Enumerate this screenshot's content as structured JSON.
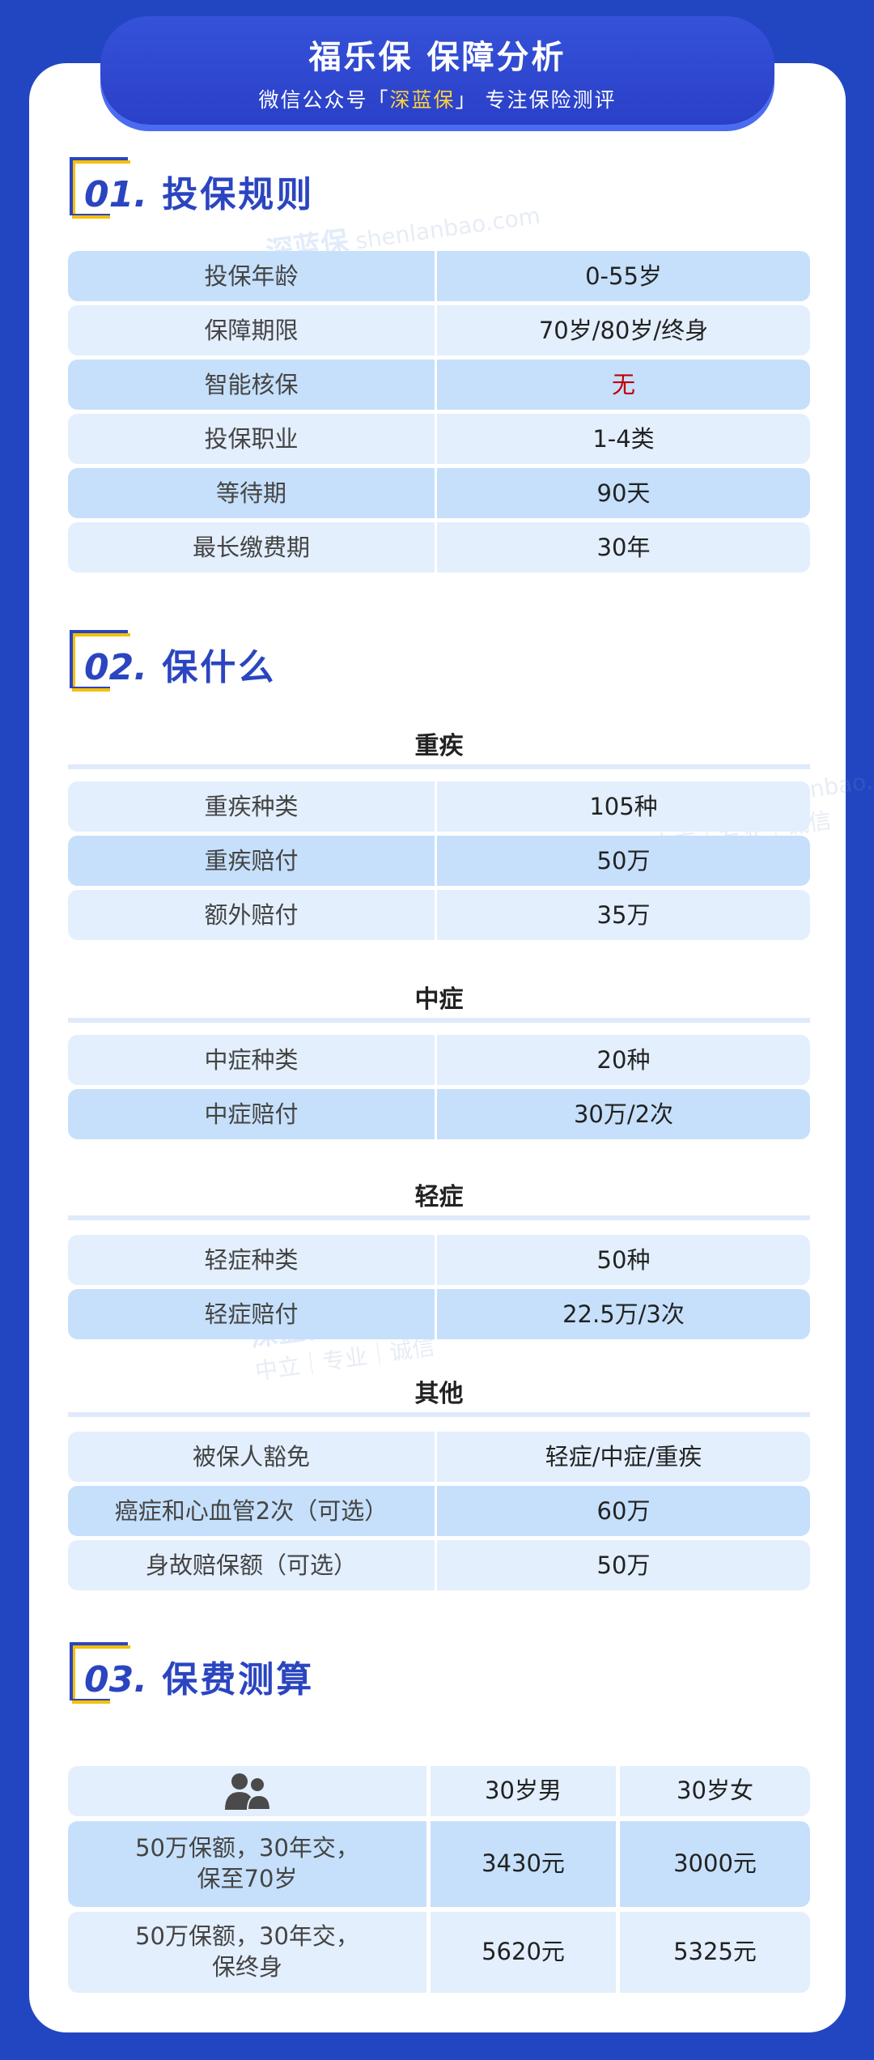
{
  "header": {
    "title": "福乐保 保障分析",
    "subtitle_prefix": "微信公众号「",
    "subtitle_brand": "深蓝保",
    "subtitle_suffix": "」 专注保险测评"
  },
  "watermark": {
    "domain": "shenlanbao.com",
    "slogan": "中立｜专业｜诚信",
    "logo": "深蓝保"
  },
  "colors": {
    "background": "#2246c2",
    "accent": "#2b45c0",
    "marker": "#f5c000",
    "row_dark": "#c6e0fb",
    "row_light": "#e3effd",
    "highlight": "#c00000"
  },
  "sections": [
    {
      "num": "01.",
      "title": "投保规则"
    },
    {
      "num": "02.",
      "title": "保什么"
    },
    {
      "num": "03.",
      "title": "保费测算"
    }
  ],
  "rules": [
    {
      "label": "投保年龄",
      "value": "0-55岁"
    },
    {
      "label": "保障期限",
      "value": "70岁/80岁/终身"
    },
    {
      "label": "智能核保",
      "value": "无",
      "highlight": true
    },
    {
      "label": "投保职业",
      "value": "1-4类"
    },
    {
      "label": "等待期",
      "value": "90天"
    },
    {
      "label": "最长缴费期",
      "value": "30年"
    }
  ],
  "coverage": [
    {
      "group": "重疾",
      "rows": [
        {
          "label": "重疾种类",
          "value": "105种"
        },
        {
          "label": "重疾赔付",
          "value": "50万"
        },
        {
          "label": "额外赔付",
          "value": "35万"
        }
      ]
    },
    {
      "group": "中症",
      "rows": [
        {
          "label": "中症种类",
          "value": "20种"
        },
        {
          "label": "中症赔付",
          "value": "30万/2次"
        }
      ]
    },
    {
      "group": "轻症",
      "rows": [
        {
          "label": "轻症种类",
          "value": "50种"
        },
        {
          "label": "轻症赔付",
          "value": "22.5万/3次"
        }
      ]
    },
    {
      "group": "其他",
      "rows": [
        {
          "label": "被保人豁免",
          "value": "轻症/中症/重疾"
        },
        {
          "label": "癌症和心血管2次（可选）",
          "value": "60万"
        },
        {
          "label": "身故赔保额（可选）",
          "value": "50万"
        }
      ]
    }
  ],
  "premium": {
    "header_icon": "people-icon",
    "columns": [
      "30岁男",
      "30岁女"
    ],
    "rows": [
      {
        "plan_line1": "50万保额，30年交，",
        "plan_line2": "保至70岁",
        "male": "3430元",
        "female": "3000元"
      },
      {
        "plan_line1": "50万保额，30年交，",
        "plan_line2": "保终身",
        "male": "5620元",
        "female": "5325元"
      }
    ]
  }
}
